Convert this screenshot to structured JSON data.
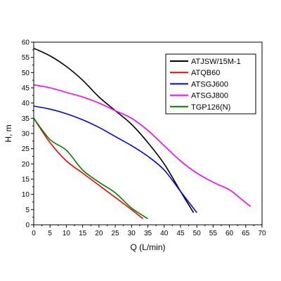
{
  "chart_data": {
    "type": "line",
    "title": "",
    "xlabel": "Q (L/min)",
    "ylabel": "H, m",
    "xlim": [
      0,
      70
    ],
    "ylim": [
      0,
      60
    ],
    "x_ticks": [
      0,
      5,
      10,
      15,
      20,
      25,
      30,
      35,
      40,
      45,
      50,
      55,
      60,
      65,
      70
    ],
    "y_ticks": [
      0,
      5,
      10,
      15,
      20,
      25,
      30,
      35,
      40,
      45,
      50,
      55,
      60
    ],
    "grid": false,
    "legend_position": "top-right",
    "series": [
      {
        "name": "ATJSW/15M-1",
        "color": "#000000",
        "points": [
          [
            0,
            58
          ],
          [
            5,
            55.5
          ],
          [
            10,
            52
          ],
          [
            15,
            47.5
          ],
          [
            20,
            42
          ],
          [
            25,
            37.5
          ],
          [
            30,
            33
          ],
          [
            35,
            27
          ],
          [
            40,
            20
          ],
          [
            45,
            11
          ],
          [
            49,
            4
          ]
        ]
      },
      {
        "name": "ATQB60",
        "color": "#ff0000",
        "points": [
          [
            0,
            35
          ],
          [
            5,
            27
          ],
          [
            10,
            21
          ],
          [
            15,
            17
          ],
          [
            20,
            13
          ],
          [
            25,
            9
          ],
          [
            30,
            5
          ],
          [
            33.5,
            2
          ]
        ]
      },
      {
        "name": "ATSGJ600",
        "color": "#0000ff",
        "points": [
          [
            0,
            39
          ],
          [
            5,
            38
          ],
          [
            10,
            36.5
          ],
          [
            15,
            34.5
          ],
          [
            20,
            32
          ],
          [
            25,
            29
          ],
          [
            30,
            26
          ],
          [
            35,
            22.5
          ],
          [
            40,
            18
          ],
          [
            45,
            11
          ],
          [
            50,
            4
          ]
        ]
      },
      {
        "name": "ATSGJ800",
        "color": "#ff00ff",
        "points": [
          [
            0,
            46
          ],
          [
            5,
            45
          ],
          [
            10,
            43.5
          ],
          [
            15,
            42
          ],
          [
            20,
            40
          ],
          [
            25,
            37.5
          ],
          [
            30,
            35
          ],
          [
            35,
            31
          ],
          [
            40,
            26
          ],
          [
            45,
            21
          ],
          [
            50,
            17
          ],
          [
            55,
            14
          ],
          [
            60,
            11.5
          ],
          [
            63,
            9
          ],
          [
            66.5,
            6
          ]
        ]
      },
      {
        "name": "TGP126(N)",
        "color": "#008000",
        "points": [
          [
            0,
            35
          ],
          [
            5,
            28
          ],
          [
            10,
            24.5
          ],
          [
            15,
            18
          ],
          [
            20,
            14
          ],
          [
            25,
            10.5
          ],
          [
            30,
            5.5
          ],
          [
            35,
            2
          ]
        ]
      }
    ]
  }
}
